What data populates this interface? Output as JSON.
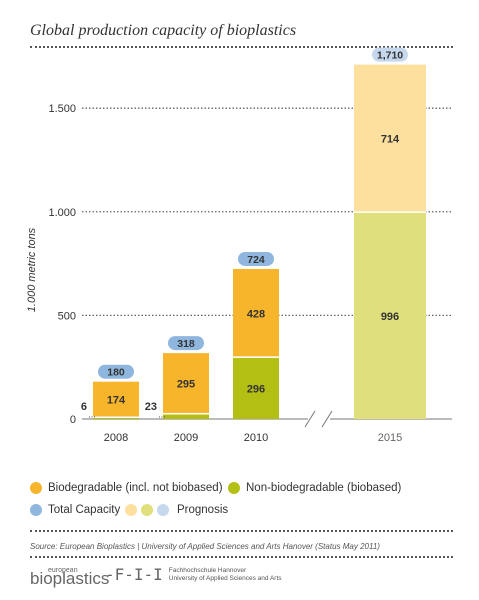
{
  "title": "Global production capacity of bioplastics",
  "chart_data": {
    "type": "bar",
    "stacked": true,
    "categories": [
      "2008",
      "2009",
      "2010",
      "2015"
    ],
    "ylabel": "1.000 metric tons",
    "ylim": [
      0,
      1800
    ],
    "yticks": [
      {
        "value": 0,
        "label": "0"
      },
      {
        "value": 500,
        "label": "500"
      },
      {
        "value": 1000,
        "label": "1.000"
      },
      {
        "value": 1500,
        "label": "1.500"
      }
    ],
    "series": [
      {
        "name": "Non-biodegradable (biobased)",
        "values": [
          6,
          23,
          296,
          996
        ],
        "labels": [
          "6",
          "23",
          "296",
          "996"
        ]
      },
      {
        "name": "Biodegradable (incl. not biobased)",
        "values": [
          174,
          295,
          428,
          714
        ],
        "labels": [
          "174",
          "295",
          "428",
          "714"
        ]
      }
    ],
    "totals": [
      {
        "value": 180,
        "label": "180"
      },
      {
        "value": 318,
        "label": "318"
      },
      {
        "value": 724,
        "label": "724"
      },
      {
        "value": 1710,
        "label": "1,710"
      }
    ],
    "prognosis_category": "2015",
    "grid": true
  },
  "legend": {
    "biodegradable": "Biodegradable (incl. not biobased)",
    "non_biodegradable": "Non-biodegradable (biobased)",
    "total": "Total Capacity",
    "prognosis": "Prognosis"
  },
  "colors": {
    "biodegradable": "#f6b52a",
    "non_biodegradable": "#b4bf14",
    "total": "#8fb6de",
    "biodegradable_prognosis": "#fde09e",
    "non_biodegradable_prognosis": "#dfe07c",
    "total_prognosis": "#c6d8ee"
  },
  "source": "Source: European Bioplastics | University of Applied Sciences and Arts Hanover (Status May 2011)",
  "logos": {
    "eu_small": "european",
    "eu_big": "bioplastics",
    "fh_line1": "Fachhochschule Hannover",
    "fh_line2": "University of Applied Sciences and Arts"
  }
}
